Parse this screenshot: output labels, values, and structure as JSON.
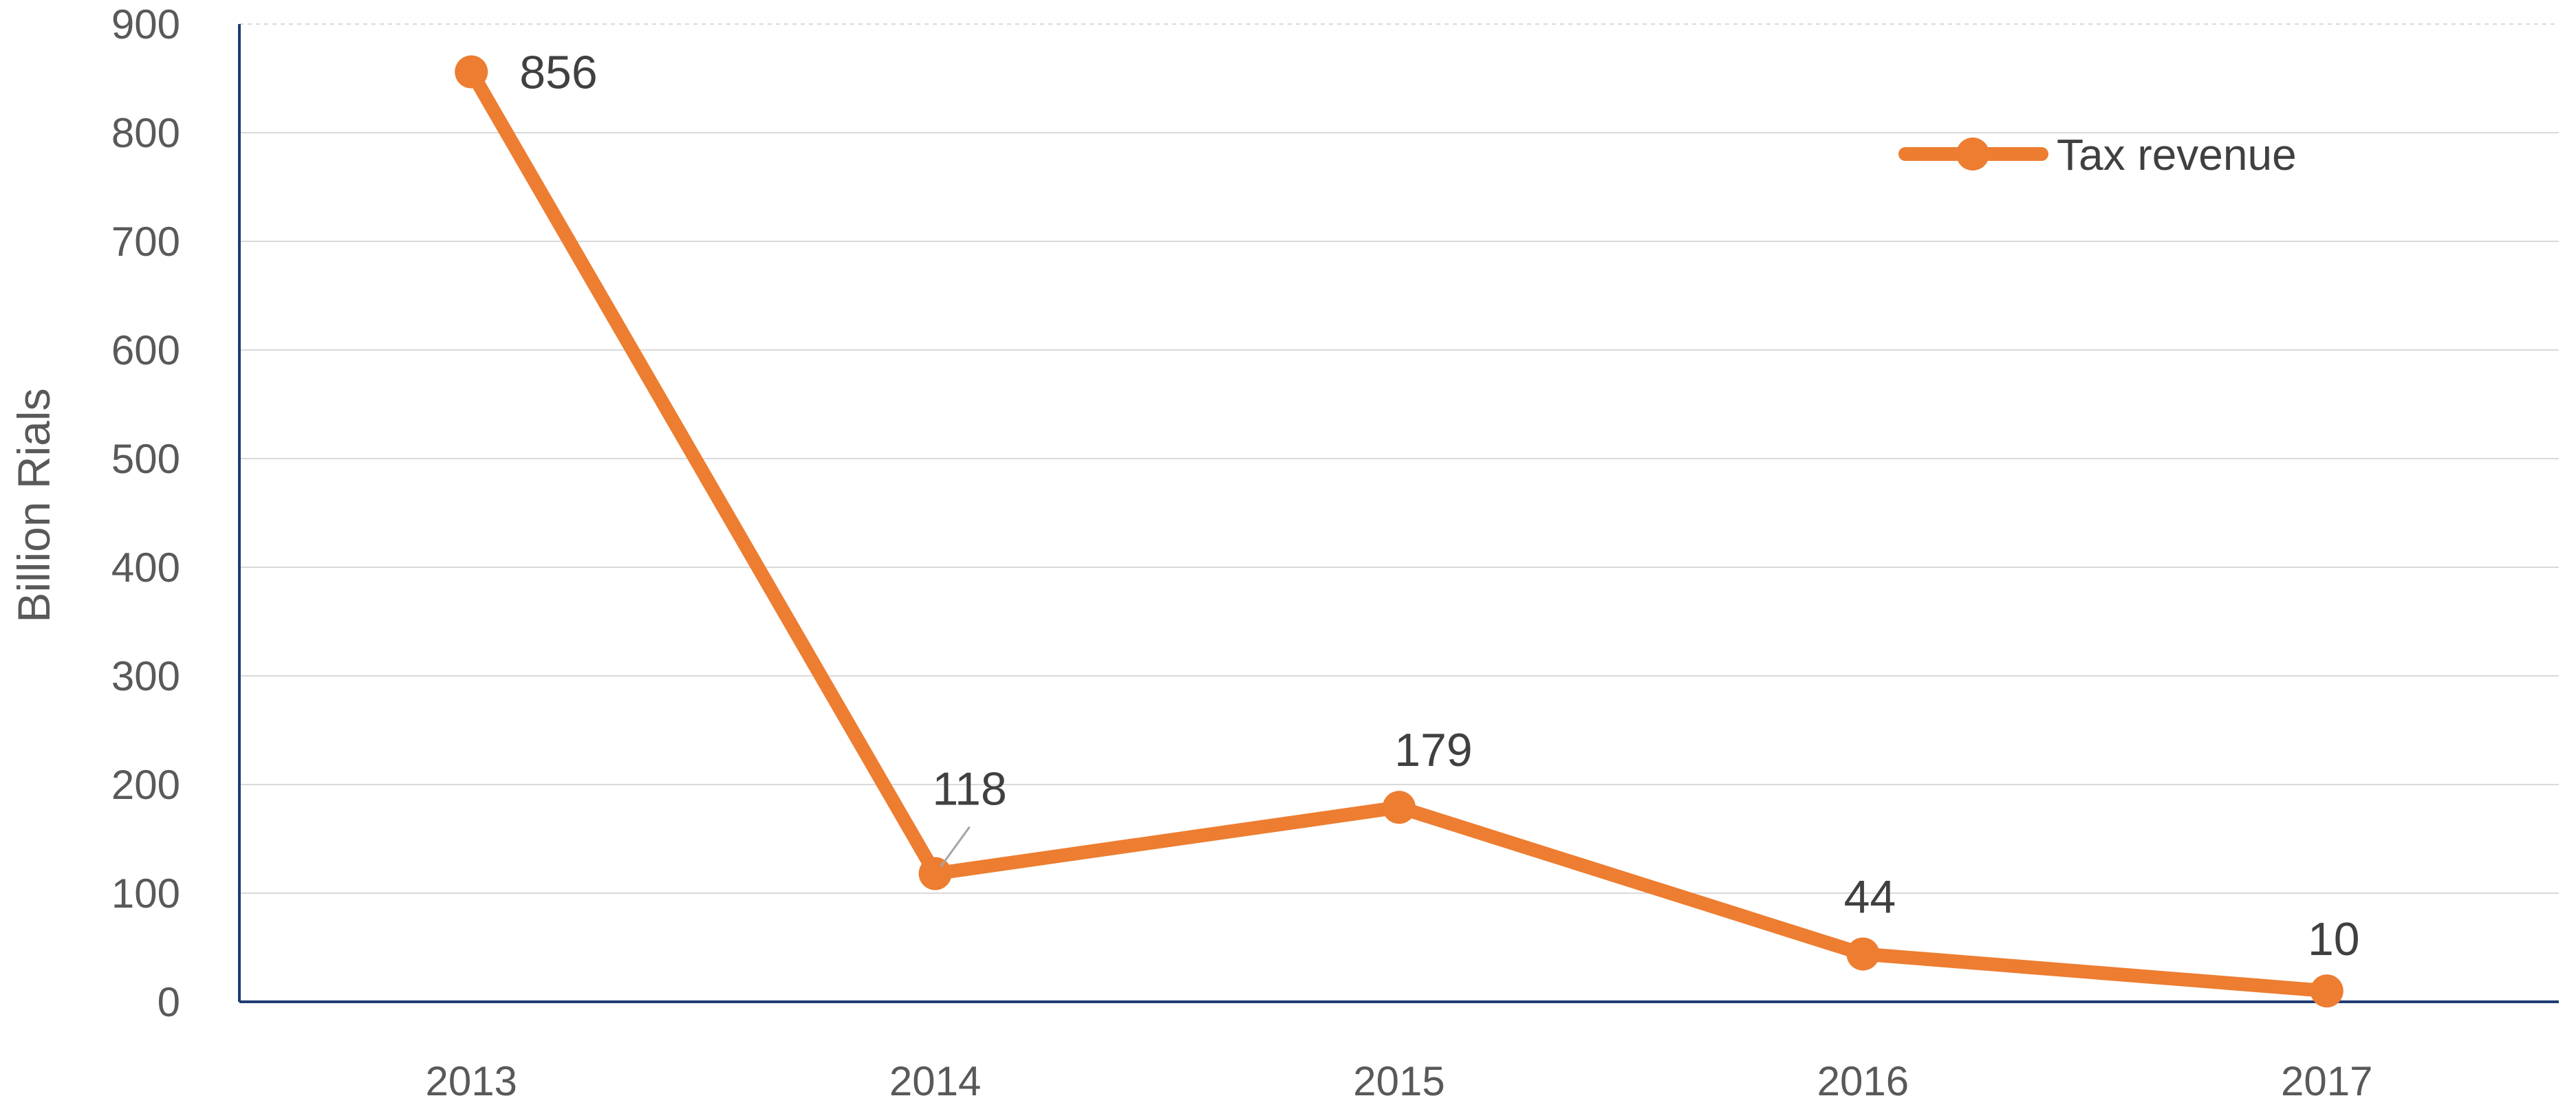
{
  "chart_data": {
    "type": "line",
    "title": "",
    "xlabel": "",
    "ylabel": "Billion Rials",
    "categories": [
      "2013",
      "2014",
      "2015",
      "2016",
      "2017"
    ],
    "series": [
      {
        "name": "Tax revenue",
        "values": [
          856,
          118,
          179,
          44,
          10
        ],
        "color": "#ED7D31"
      }
    ],
    "data_labels": [
      "856",
      "118",
      "179",
      "44",
      "10"
    ],
    "ylim": [
      0,
      900
    ],
    "yticks": [
      "0",
      "100",
      "200",
      "300",
      "400",
      "500",
      "600",
      "700",
      "800",
      "900"
    ],
    "grid": true,
    "legend": "top-right",
    "axis_color": "#1F3B73",
    "grid_color": "#D9D9D9",
    "text_color": "#595959"
  }
}
